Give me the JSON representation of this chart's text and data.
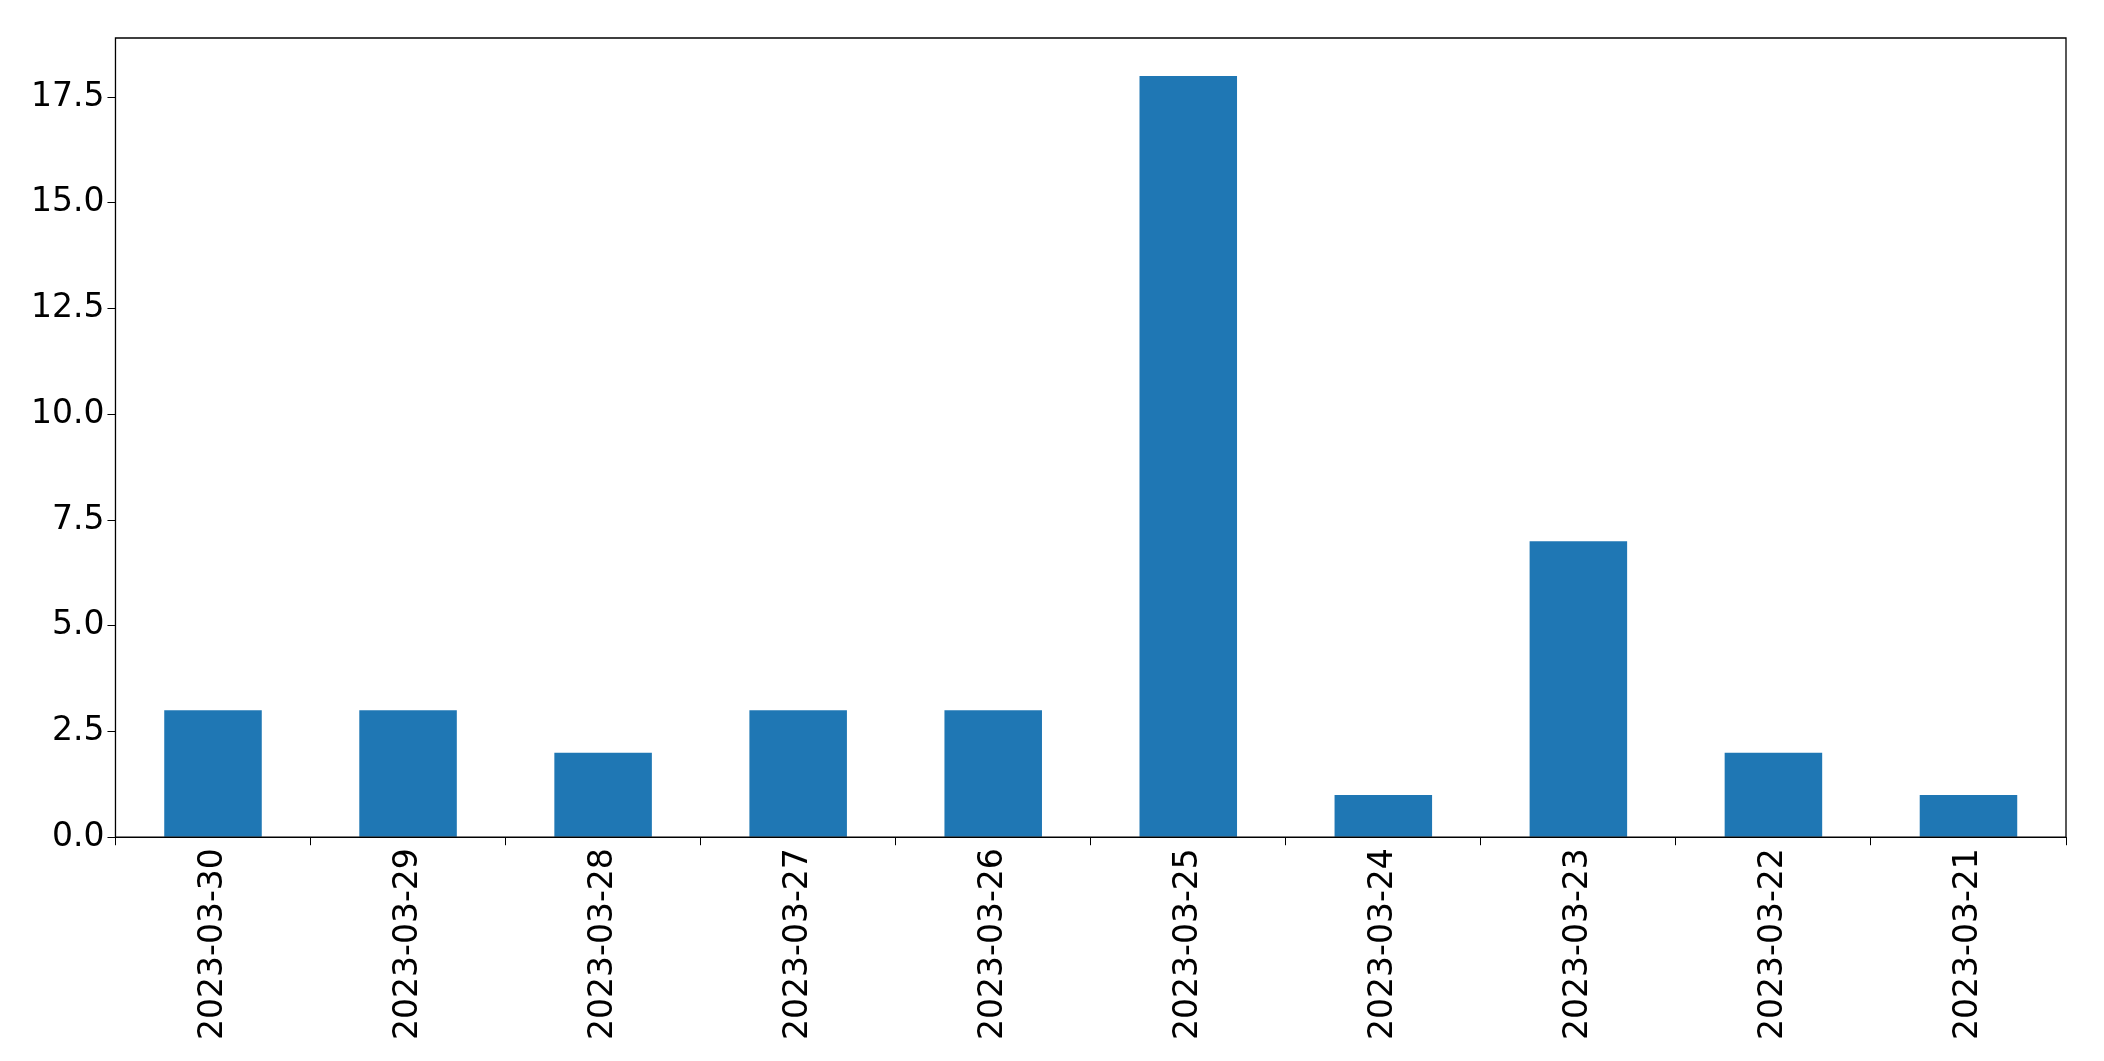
{
  "chart_data": {
    "type": "bar",
    "categories": [
      "2023-03-30",
      "2023-03-29",
      "2023-03-28",
      "2023-03-27",
      "2023-03-26",
      "2023-03-25",
      "2023-03-24",
      "2023-03-23",
      "2023-03-22",
      "2023-03-21"
    ],
    "values": [
      3,
      3,
      2,
      3,
      3,
      18,
      1,
      7,
      2,
      1
    ],
    "color": "#1f77b4",
    "ylim": [
      0,
      18.9
    ],
    "yticks": [
      {
        "value": 0,
        "label": "0.0"
      },
      2.5,
      {
        "value": 5,
        "label": "5.0"
      },
      7.5,
      {
        "value": 10,
        "label": "10.0"
      },
      12.5,
      {
        "value": 15,
        "label": "15.0"
      },
      17.5
    ],
    "grid": false,
    "legend": false
  }
}
